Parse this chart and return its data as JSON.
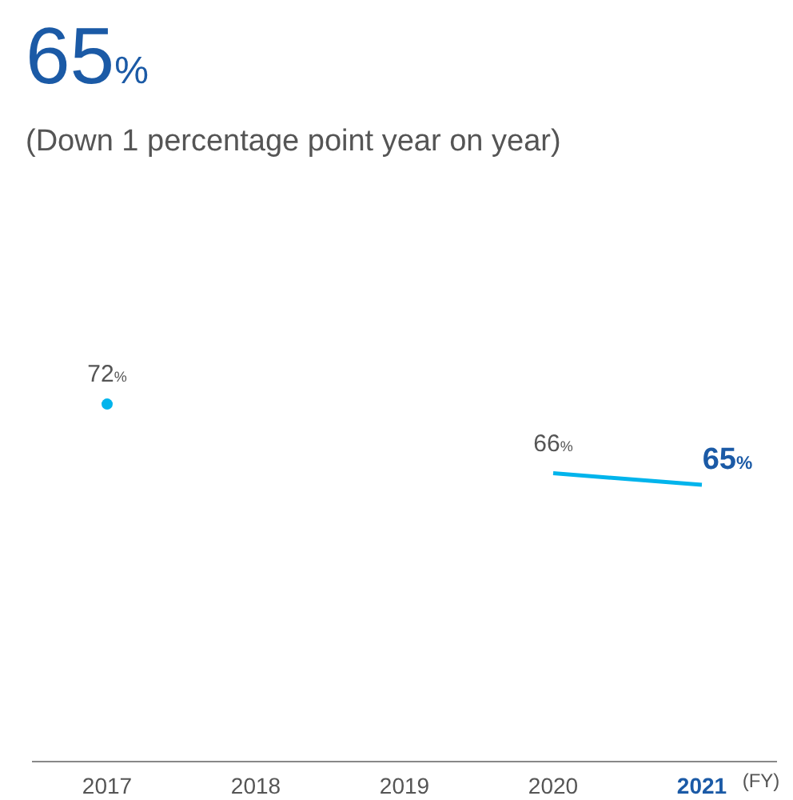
{
  "chart_data": {
    "type": "line",
    "title": "65%",
    "subtitle": "(Down 1 percentage point year on year)",
    "xlabel": "(FY)",
    "categories": [
      "2017",
      "2018",
      "2019",
      "2020",
      "2021"
    ],
    "series": [
      {
        "color": "#00b4ec",
        "values": [
          72,
          null,
          null,
          66,
          65
        ],
        "value_labels": [
          "72%",
          null,
          null,
          "66%",
          "65%"
        ]
      }
    ],
    "line_style": "solid"
  }
}
